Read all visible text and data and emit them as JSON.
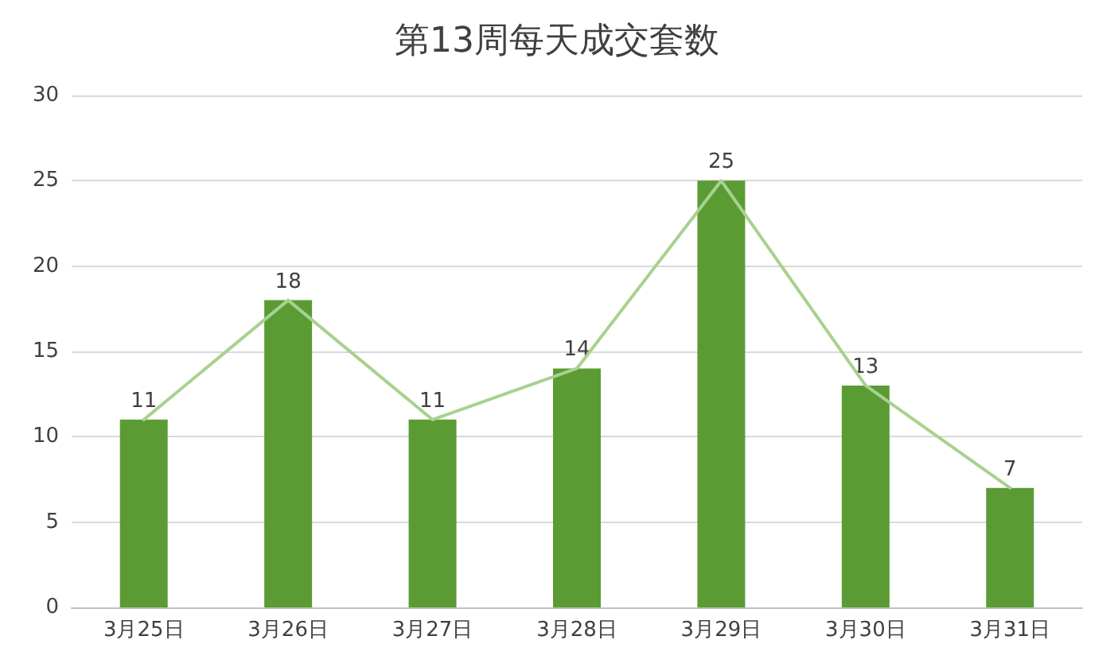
{
  "chart_data": {
    "type": "bar",
    "title": "第13周每天成交套数",
    "categories": [
      "3月25日",
      "3月26日",
      "3月27日",
      "3月28日",
      "3月29日",
      "3月30日",
      "3月31日"
    ],
    "series": [
      {
        "color": "#5b9b34",
        "values": [
          11,
          18,
          11,
          14,
          25,
          13,
          7
        ],
        "value_labels": [
          "11",
          "18",
          "11",
          "14",
          "25",
          "13",
          "7"
        ]
      },
      {
        "type": "line",
        "color": "#a9d18e",
        "values": [
          11,
          18,
          11,
          14,
          25,
          13,
          7
        ]
      }
    ],
    "ylim": [
      0,
      30
    ],
    "yticks": [
      0,
      5,
      10,
      15,
      20,
      25,
      30
    ],
    "grid": "y",
    "marker": "none"
  }
}
